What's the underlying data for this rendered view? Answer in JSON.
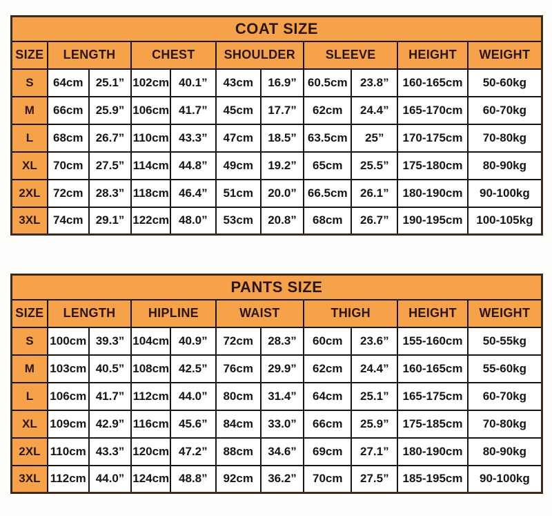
{
  "colors": {
    "header_orange": "#F5A24B",
    "outer_border": "#3B2B1C",
    "grid_line": "#1A1512",
    "header_text": "#2A1506",
    "cell_text": "#141414",
    "background": "#FEFEFD"
  },
  "tables": [
    {
      "id": "coat",
      "title": "COAT SIZE",
      "size_header": "SIZE",
      "column_groups": [
        {
          "label": "LENGTH",
          "span": 2
        },
        {
          "label": "CHEST",
          "span": 2
        },
        {
          "label": "SHOULDER",
          "span": 2
        },
        {
          "label": "SLEEVE",
          "span": 2
        },
        {
          "label": "HEIGHT",
          "span": 1
        },
        {
          "label": "WEIGHT",
          "span": 1
        }
      ],
      "rows": [
        {
          "size": "S",
          "cells": [
            "64cm",
            "25.1”",
            "102cm",
            "40.1”",
            "43cm",
            "16.9”",
            "60.5cm",
            "23.8”",
            "160-165cm",
            "50-60kg"
          ]
        },
        {
          "size": "M",
          "cells": [
            "66cm",
            "25.9”",
            "106cm",
            "41.7”",
            "45cm",
            "17.7”",
            "62cm",
            "24.4”",
            "165-170cm",
            "60-70kg"
          ]
        },
        {
          "size": "L",
          "cells": [
            "68cm",
            "26.7”",
            "110cm",
            "43.3”",
            "47cm",
            "18.5”",
            "63.5cm",
            "25”",
            "170-175cm",
            "70-80kg"
          ]
        },
        {
          "size": "XL",
          "cells": [
            "70cm",
            "27.5”",
            "114cm",
            "44.8”",
            "49cm",
            "19.2”",
            "65cm",
            "25.5”",
            "175-180cm",
            "80-90kg"
          ]
        },
        {
          "size": "2XL",
          "cells": [
            "72cm",
            "28.3”",
            "118cm",
            "46.4”",
            "51cm",
            "20.0”",
            "66.5cm",
            "26.1”",
            "180-190cm",
            "90-100kg"
          ]
        },
        {
          "size": "3XL",
          "cells": [
            "74cm",
            "29.1”",
            "122cm",
            "48.0”",
            "53cm",
            "20.8”",
            "68cm",
            "26.7”",
            "190-195cm",
            "100-105kg"
          ]
        }
      ]
    },
    {
      "id": "pants",
      "title": "PANTS SIZE",
      "size_header": "SIZE",
      "column_groups": [
        {
          "label": "LENGTH",
          "span": 2
        },
        {
          "label": "HIPLINE",
          "span": 2
        },
        {
          "label": "WAIST",
          "span": 2
        },
        {
          "label": "THIGH",
          "span": 2
        },
        {
          "label": "HEIGHT",
          "span": 1
        },
        {
          "label": "WEIGHT",
          "span": 1
        }
      ],
      "rows": [
        {
          "size": "S",
          "cells": [
            "100cm",
            "39.3”",
            "104cm",
            "40.9”",
            "72cm",
            "28.3”",
            "60cm",
            "23.6”",
            "155-160cm",
            "50-55kg"
          ]
        },
        {
          "size": "M",
          "cells": [
            "103cm",
            "40.5”",
            "108cm",
            "42.5”",
            "76cm",
            "29.9”",
            "62cm",
            "24.4”",
            "160-165cm",
            "55-60kg"
          ]
        },
        {
          "size": "L",
          "cells": [
            "106cm",
            "41.7”",
            "112cm",
            "44.0”",
            "80cm",
            "31.4”",
            "64cm",
            "25.1”",
            "165-175cm",
            "60-70kg"
          ]
        },
        {
          "size": "XL",
          "cells": [
            "109cm",
            "42.9”",
            "116cm",
            "45.6”",
            "84cm",
            "33.0”",
            "66cm",
            "25.9”",
            "175-185cm",
            "70-80kg"
          ]
        },
        {
          "size": "2XL",
          "cells": [
            "110cm",
            "43.3”",
            "120cm",
            "47.2”",
            "88cm",
            "34.6”",
            "69cm",
            "27.1”",
            "180-190cm",
            "80-90kg"
          ]
        },
        {
          "size": "3XL",
          "cells": [
            "112cm",
            "44.0”",
            "124cm",
            "48.8”",
            "92cm",
            "36.2”",
            "70cm",
            "27.5”",
            "185-195cm",
            "90-100kg"
          ]
        }
      ]
    }
  ]
}
